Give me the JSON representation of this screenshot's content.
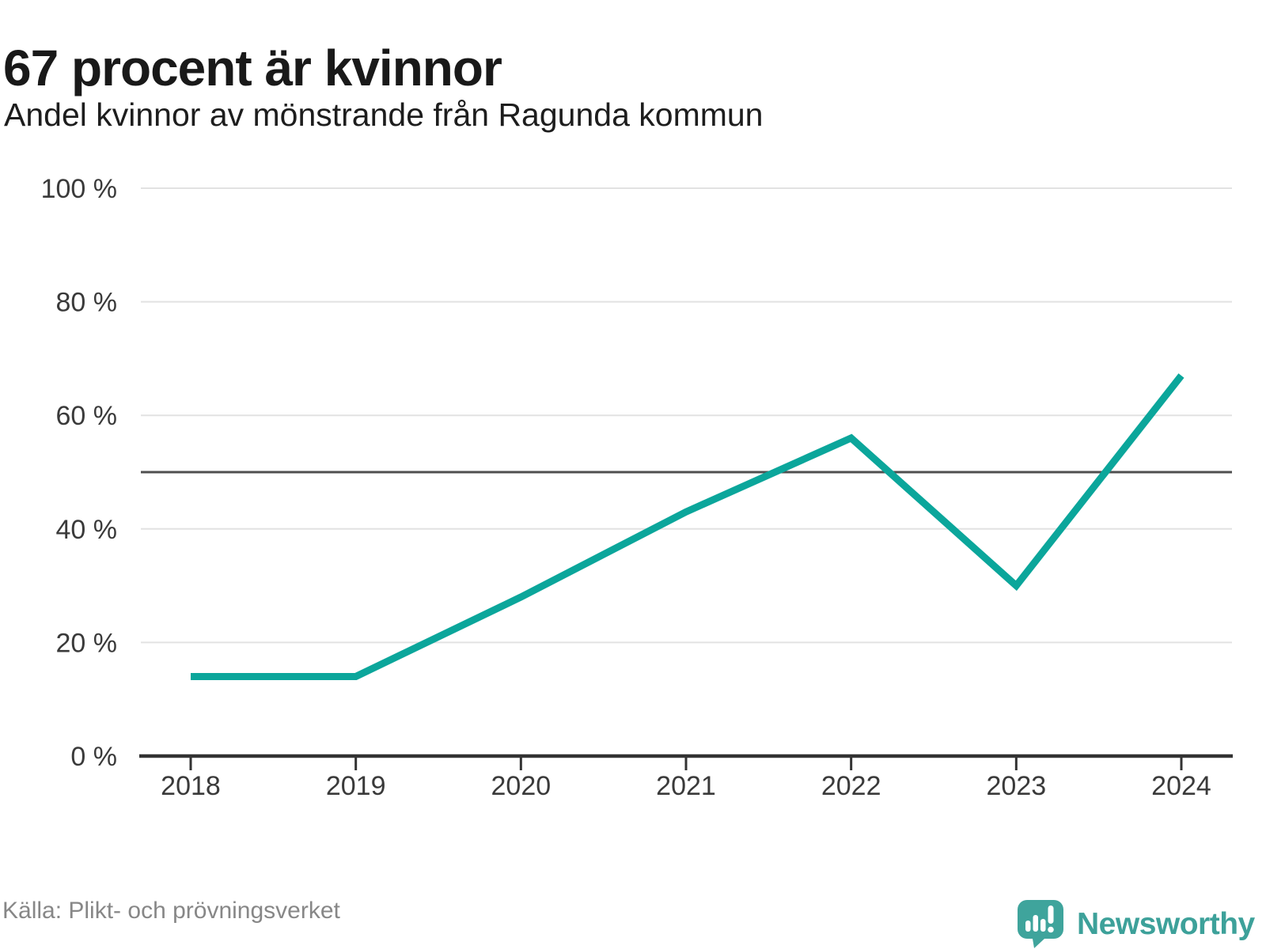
{
  "header": {
    "title": "67 procent är kvinnor",
    "subtitle": "Andel kvinnor av mönstrande från Ragunda kommun"
  },
  "chart_data": {
    "type": "line",
    "title": "67 procent är kvinnor",
    "subtitle": "Andel kvinnor av mönstrande från Ragunda kommun",
    "categories": [
      "2018",
      "2019",
      "2020",
      "2021",
      "2022",
      "2023",
      "2024"
    ],
    "values": [
      14,
      14,
      28,
      43,
      56,
      30,
      67
    ],
    "unit": "%",
    "xlabel": "",
    "ylabel": "",
    "ylim": [
      0,
      100
    ],
    "y_ticks": [
      0,
      20,
      40,
      60,
      80,
      100
    ],
    "y_tick_labels": [
      "0 %",
      "20 %",
      "40 %",
      "60 %",
      "80 %",
      "100 %"
    ],
    "reference_line_y": 50,
    "grid": true,
    "legend_position": "none",
    "line_color": "#0ba69b"
  },
  "footer": {
    "source": "Källa: Plikt- och prövningsverket",
    "brand": "Newsworthy"
  },
  "colors": {
    "line": "#0ba69b",
    "grid": "#e2e2e2",
    "reference": "#4f4f4f",
    "axis": "#333333",
    "tick_label": "#3a3a3a",
    "title": "#191919",
    "subtitle": "#1d1d1d",
    "source": "#878787",
    "brand": "#3da19a",
    "logo": "#3fa49c"
  }
}
